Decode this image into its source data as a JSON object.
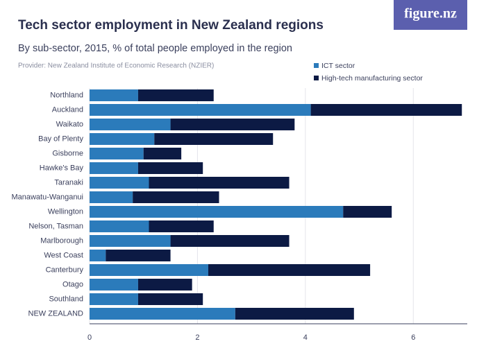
{
  "brand": "figure.nz",
  "chart_data": {
    "type": "stacked-barh",
    "title": "Tech sector employment in New Zealand regions",
    "subtitle": "By sub-sector, 2015, % of total people employed in the region",
    "source": "Provider: New Zealand Institute of Economic Research (NZIER)",
    "categories": [
      "Northland",
      "Auckland",
      "Waikato",
      "Bay of Plenty",
      "Gisborne",
      "Hawke's Bay",
      "Taranaki",
      "Manawatu-Wanganui",
      "Wellington",
      "Nelson, Tasman",
      "Marlborough",
      "West Coast",
      "Canterbury",
      "Otago",
      "Southland",
      "NEW ZEALAND"
    ],
    "series": [
      {
        "name": "ICT sector",
        "color": "#2b7bbb",
        "values": [
          0.9,
          4.1,
          1.5,
          1.2,
          1.0,
          0.9,
          1.1,
          0.8,
          4.7,
          1.1,
          1.5,
          0.3,
          2.2,
          0.9,
          0.9,
          2.7
        ]
      },
      {
        "name": "High-tech manufacturing sector",
        "color": "#0c1a44",
        "values": [
          1.4,
          2.8,
          2.3,
          2.2,
          0.7,
          1.2,
          2.6,
          1.6,
          0.9,
          1.2,
          2.2,
          1.2,
          3.0,
          1.0,
          1.2,
          2.2
        ]
      }
    ],
    "xlim": [
      0,
      7
    ],
    "xticks": [
      0,
      2,
      4,
      6
    ],
    "grid": true
  }
}
